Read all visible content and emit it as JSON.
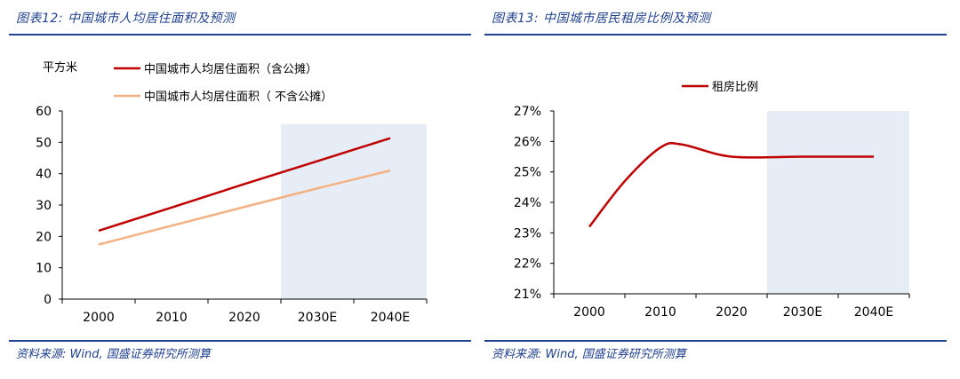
{
  "left": {
    "title": "图表12:  中国城市人均居住面积及预测",
    "source": "资料来源:  Wind, 国盛证券研究所测算"
  },
  "right": {
    "title": "图表13:  中国城市居民租房比例及预测",
    "source": "资料来源:  Wind, 国盛证券研究所测算"
  },
  "chart_data": [
    {
      "type": "line",
      "ylabel": "平方米",
      "x": [
        "2000",
        "2010",
        "2020",
        "2030E",
        "2040E"
      ],
      "ylim": [
        0,
        60
      ],
      "yticks": [
        "0",
        "10",
        "20",
        "30",
        "40",
        "50",
        "60"
      ],
      "forecast_shaded": [
        "2030E",
        "2040E"
      ],
      "legend_position": "top-left",
      "series": [
        {
          "name": "中国城市人均居住面积（含公摊）",
          "color": "#c00000",
          "values": [
            21.8,
            29.2,
            36.7,
            44.0,
            51.3
          ]
        },
        {
          "name": "中国城市人均居住面积（ 不含公摊）",
          "color": "#f4b183",
          "values": [
            17.4,
            23.4,
            29.4,
            35.3,
            41.0
          ]
        }
      ]
    },
    {
      "type": "line",
      "x": [
        "2000",
        "2010",
        "2020",
        "2030E",
        "2040E"
      ],
      "ylim": [
        21,
        27
      ],
      "yticks": [
        "21%",
        "22%",
        "23%",
        "24%",
        "25%",
        "26%",
        "27%"
      ],
      "forecast_shaded": [
        "2030E",
        "2040E"
      ],
      "legend_position": "top-center",
      "series": [
        {
          "name": "租房比例",
          "color": "#c00000",
          "points": [
            [
              2000,
              23.2
            ],
            [
              2005,
              24.7
            ],
            [
              2010,
              25.8
            ],
            [
              2013,
              25.9
            ],
            [
              2020,
              25.5
            ],
            [
              2030,
              25.5
            ],
            [
              2040,
              25.5
            ]
          ]
        }
      ]
    }
  ]
}
